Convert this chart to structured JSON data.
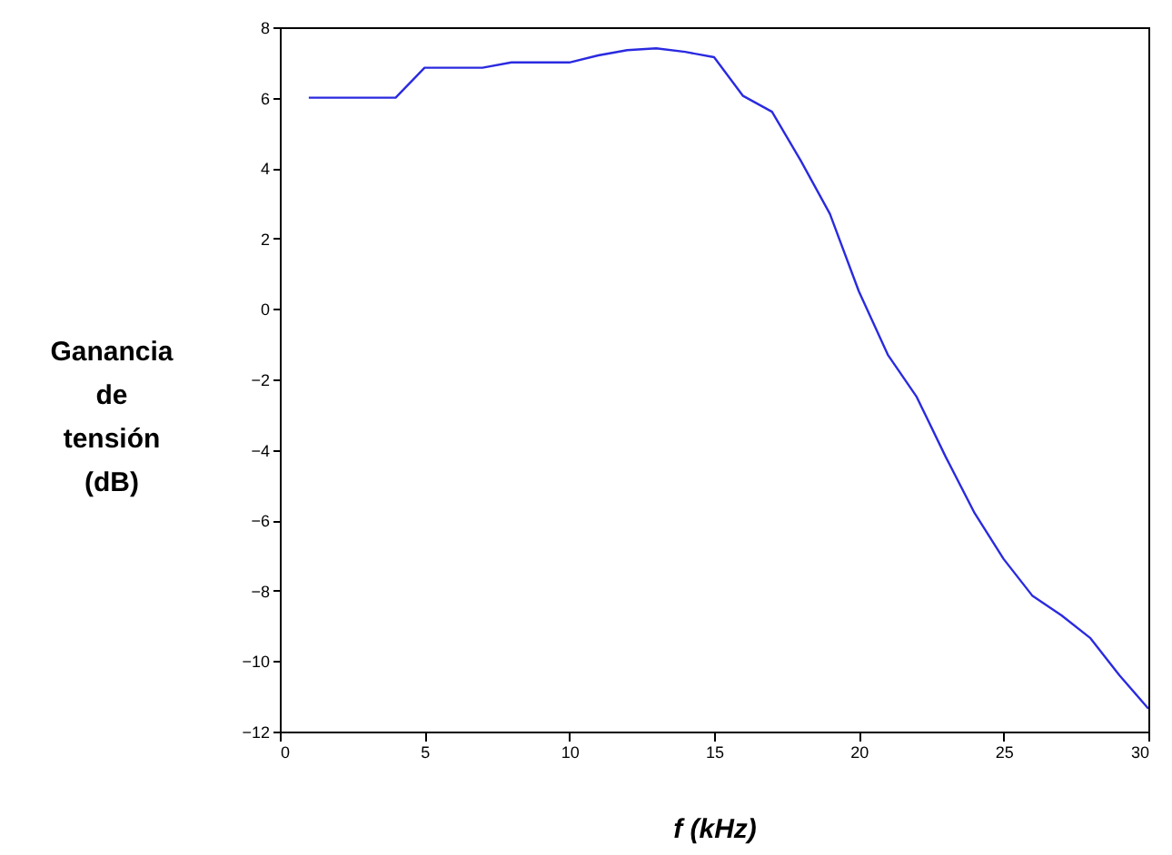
{
  "chart_data": {
    "type": "line",
    "xlabel": "f (kHz)",
    "ylabel": "Ganancia\nde\ntensión\n(dB)",
    "xlim": [
      0,
      30
    ],
    "ylim": [
      -12,
      8
    ],
    "xticks": [
      0,
      5,
      10,
      15,
      20,
      25,
      30
    ],
    "yticks": [
      -12,
      -10,
      -8,
      -6,
      -4,
      -2,
      0,
      2,
      4,
      6,
      8
    ],
    "grid": false,
    "series": [
      {
        "color": "#2a2ae0",
        "x": [
          1,
          4,
          5,
          7,
          8,
          10,
          11,
          12,
          13,
          14,
          15,
          16,
          17,
          18,
          19,
          20,
          21,
          22,
          23,
          24,
          25,
          26,
          27,
          28,
          29,
          30
        ],
        "values": [
          6,
          6,
          6.85,
          6.85,
          7,
          7,
          7.2,
          7.35,
          7.4,
          7.3,
          7.15,
          6.05,
          5.6,
          4.2,
          2.7,
          0.5,
          -1.3,
          -2.5,
          -4.2,
          -5.8,
          -7.1,
          -8.15,
          -8.7,
          -9.35,
          -10.4,
          -11.35
        ]
      }
    ]
  }
}
